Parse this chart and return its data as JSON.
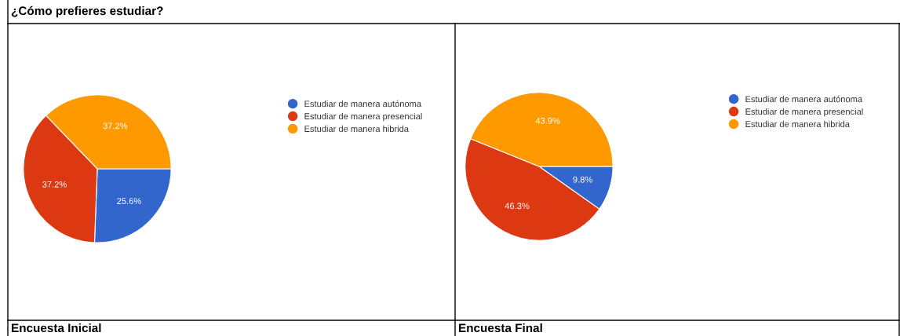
{
  "chart_data": [
    {
      "type": "pie",
      "title": "¿Cómo prefieres estudiar?",
      "subtitle": "Encuesta Inicial",
      "categories": [
        "Estudiar de manera autónoma",
        "Estudiar de manera presencial",
        "Estudiar de manera hibrida"
      ],
      "values": [
        25.6,
        37.2,
        37.2
      ],
      "colors": [
        "#3366cc",
        "#dc3912",
        "#ff9900"
      ],
      "value_labels": [
        "25.6%",
        "37.2%",
        "37.2%"
      ],
      "legend": "right"
    },
    {
      "type": "pie",
      "subtitle": "Encuesta Final",
      "categories": [
        "Estudiar de manera autónoma",
        "Estudiar de manera presencial",
        "Estudiar de manera hibrida"
      ],
      "values": [
        9.8,
        46.3,
        43.9
      ],
      "colors": [
        "#3366cc",
        "#dc3912",
        "#ff9900"
      ],
      "value_labels": [
        "9.8%",
        "46.3%",
        "43.9%"
      ],
      "legend": "right"
    }
  ]
}
